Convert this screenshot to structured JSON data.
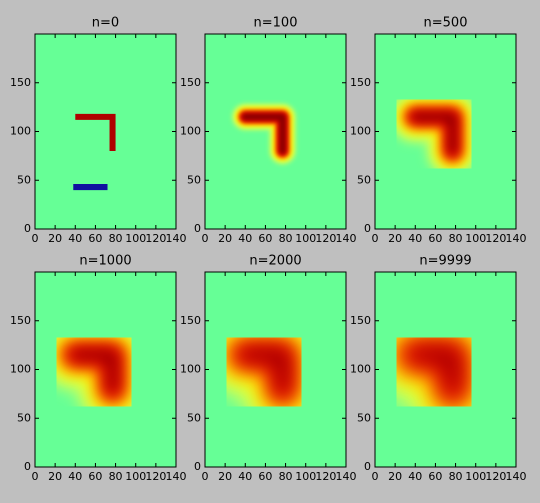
{
  "chart_data": [
    {
      "type": "heatmap",
      "title": "n=0",
      "xlim": [
        0,
        140
      ],
      "ylim": [
        0,
        200
      ],
      "xticks": [
        0,
        20,
        40,
        60,
        80,
        100,
        120,
        140
      ],
      "yticks": [
        0,
        50,
        100,
        150
      ]
    },
    {
      "type": "heatmap",
      "title": "n=100",
      "xlim": [
        0,
        140
      ],
      "ylim": [
        0,
        200
      ],
      "xticks": [
        0,
        20,
        40,
        60,
        80,
        100,
        120,
        140
      ],
      "yticks": [
        0,
        50,
        100,
        150
      ]
    },
    {
      "type": "heatmap",
      "title": "n=500",
      "xlim": [
        0,
        140
      ],
      "ylim": [
        0,
        200
      ],
      "xticks": [
        0,
        20,
        40,
        60,
        80,
        100,
        120,
        140
      ],
      "yticks": [
        0,
        50,
        100,
        150
      ]
    },
    {
      "type": "heatmap",
      "title": "n=1000",
      "xlim": [
        0,
        140
      ],
      "ylim": [
        0,
        200
      ],
      "xticks": [
        0,
        20,
        40,
        60,
        80,
        100,
        120,
        140
      ],
      "yticks": [
        0,
        50,
        100,
        150
      ]
    },
    {
      "type": "heatmap",
      "title": "n=2000",
      "xlim": [
        0,
        140
      ],
      "ylim": [
        0,
        200
      ],
      "xticks": [
        0,
        20,
        40,
        60,
        80,
        100,
        120,
        140
      ],
      "yticks": [
        0,
        50,
        100,
        150
      ]
    },
    {
      "type": "heatmap",
      "title": "n=9999",
      "xlim": [
        0,
        140
      ],
      "ylim": [
        0,
        200
      ],
      "xticks": [
        0,
        20,
        40,
        60,
        80,
        100,
        120,
        140
      ],
      "yticks": [
        0,
        50,
        100,
        150
      ]
    }
  ]
}
